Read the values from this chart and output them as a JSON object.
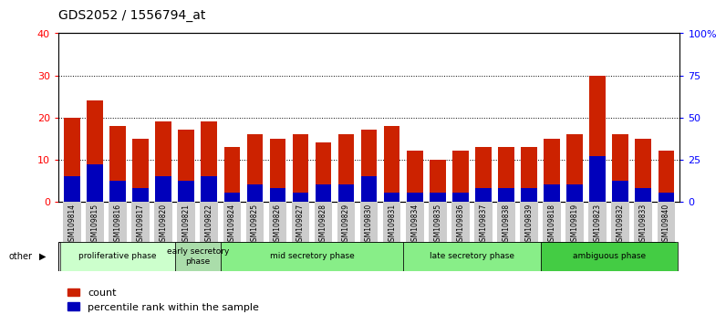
{
  "title": "GDS2052 / 1556794_at",
  "samples": [
    "GSM109814",
    "GSM109815",
    "GSM109816",
    "GSM109817",
    "GSM109820",
    "GSM109821",
    "GSM109822",
    "GSM109824",
    "GSM109825",
    "GSM109826",
    "GSM109827",
    "GSM109828",
    "GSM109829",
    "GSM109830",
    "GSM109831",
    "GSM109834",
    "GSM109835",
    "GSM109836",
    "GSM109837",
    "GSM109838",
    "GSM109839",
    "GSM109818",
    "GSM109819",
    "GSM109823",
    "GSM109832",
    "GSM109833",
    "GSM109840"
  ],
  "count_values": [
    20,
    24,
    18,
    15,
    19,
    17,
    19,
    13,
    16,
    15,
    16,
    14,
    16,
    17,
    18,
    12,
    10,
    12,
    13,
    13,
    13,
    15,
    16,
    30,
    16,
    15,
    12
  ],
  "percentile_values": [
    15,
    22,
    12,
    8,
    15,
    12,
    15,
    5,
    10,
    8,
    5,
    10,
    10,
    15,
    5,
    5,
    5,
    5,
    8,
    8,
    8,
    10,
    10,
    27,
    12,
    8,
    5
  ],
  "phases": [
    {
      "label": "proliferative phase",
      "start": 0,
      "end": 5,
      "color": "#ccffcc"
    },
    {
      "label": "early secretory\nphase",
      "start": 5,
      "end": 7,
      "color": "#aaddaa"
    },
    {
      "label": "mid secretory phase",
      "start": 7,
      "end": 15,
      "color": "#88ee88"
    },
    {
      "label": "late secretory phase",
      "start": 15,
      "end": 21,
      "color": "#88ee88"
    },
    {
      "label": "ambiguous phase",
      "start": 21,
      "end": 27,
      "color": "#44cc44"
    }
  ],
  "ylim_left": [
    0,
    40
  ],
  "ylim_right": [
    0,
    100
  ],
  "yticks_left": [
    0,
    10,
    20,
    30,
    40
  ],
  "yticks_right": [
    0,
    25,
    50,
    75,
    100
  ],
  "yticklabels_right": [
    "0",
    "25",
    "50",
    "75",
    "100%"
  ],
  "bar_color_red": "#cc2200",
  "bar_color_blue": "#0000bb",
  "bar_width": 0.7,
  "legend_count_label": "count",
  "legend_pct_label": "percentile rank within the sample",
  "other_label": "other",
  "tick_bg": "#cccccc"
}
